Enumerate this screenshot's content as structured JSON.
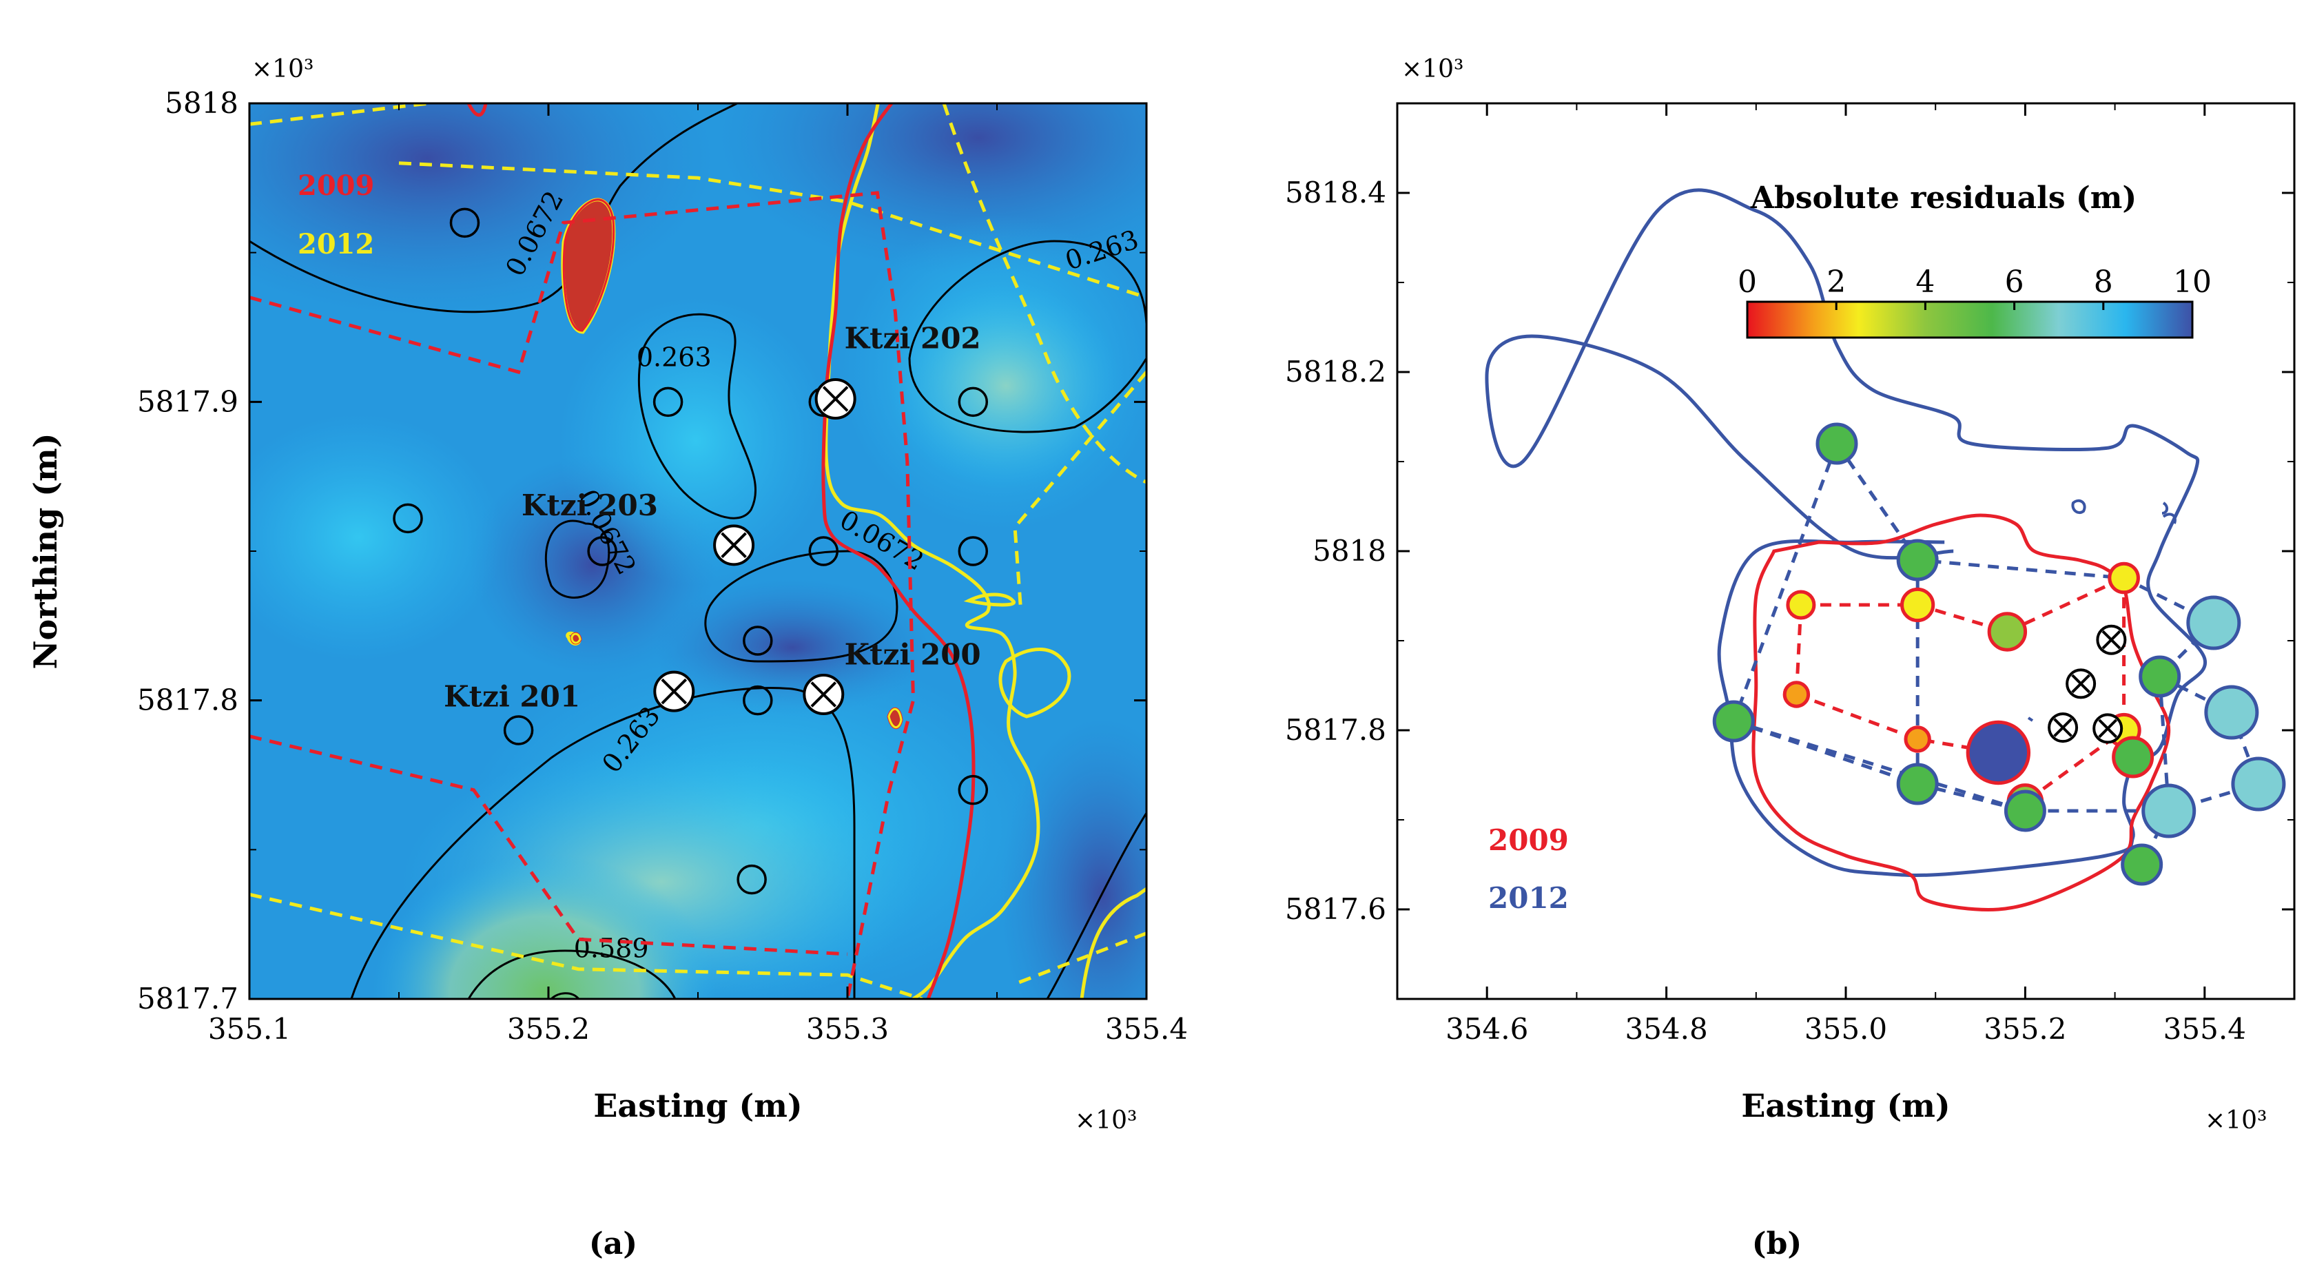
{
  "chart_data": [
    {
      "type": "heatmap",
      "subcaption": "(a)",
      "xlabel": "Easting (m)",
      "ylabel": "Northing (m)",
      "x_multiplier": "×10³",
      "y_multiplier": "×10³",
      "xlim": [
        355.1,
        355.4
      ],
      "ylim": [
        5817.7,
        5818.0
      ],
      "x_ticks": [
        355.1,
        355.2,
        355.3,
        355.4
      ],
      "y_ticks": [
        5817.7,
        5817.8,
        5817.9,
        5818
      ],
      "x_tick_labels": [
        "355.1",
        "355.2",
        "355.3",
        "355.4"
      ],
      "y_tick_labels": [
        "5817.7",
        "5817.8",
        "5817.9",
        "5818"
      ],
      "legend": [
        {
          "name": "2009",
          "color": "#e8202a"
        },
        {
          "name": "2012",
          "color": "#f2ea1c"
        }
      ],
      "contour_labels": [
        {
          "text": "0.0672",
          "x": 355.198,
          "y": 5817.955,
          "rotate": -62
        },
        {
          "text": "0.263",
          "x": 355.242,
          "y": 5817.912,
          "rotate": 0
        },
        {
          "text": "0.263",
          "x": 355.386,
          "y": 5817.948,
          "rotate": -18
        },
        {
          "text": "0.0672",
          "x": 355.217,
          "y": 5817.855,
          "rotate": 62
        },
        {
          "text": "0.0672",
          "x": 355.31,
          "y": 5817.851,
          "rotate": 30
        },
        {
          "text": "0.263",
          "x": 355.23,
          "y": 5817.785,
          "rotate": -52
        },
        {
          "text": "0.589",
          "x": 355.221,
          "y": 5817.714,
          "rotate": 0
        }
      ],
      "wells": [
        {
          "name": "Ktzi 202",
          "x": 355.296,
          "y": 5817.901
        },
        {
          "name": "Ktzi 203",
          "x": 355.262,
          "y": 5817.852
        },
        {
          "name": "Ktzi 201",
          "x": 355.242,
          "y": 5817.803
        },
        {
          "name": "Ktzi 200",
          "x": 355.292,
          "y": 5817.802
        }
      ],
      "well_labels": [
        {
          "text": "Ktzi 202",
          "x": 355.299,
          "y": 5817.918
        },
        {
          "text": "Ktzi 203",
          "x": 355.191,
          "y": 5817.862
        },
        {
          "text": "Ktzi 201",
          "x": 355.165,
          "y": 5817.798
        },
        {
          "text": "Ktzi 200",
          "x": 355.299,
          "y": 5817.812
        }
      ],
      "stations": [
        {
          "x": 355.172,
          "y": 5817.96
        },
        {
          "x": 355.24,
          "y": 5817.9
        },
        {
          "x": 355.292,
          "y": 5817.9
        },
        {
          "x": 355.342,
          "y": 5817.9
        },
        {
          "x": 355.153,
          "y": 5817.861
        },
        {
          "x": 355.218,
          "y": 5817.85
        },
        {
          "x": 355.292,
          "y": 5817.85
        },
        {
          "x": 355.342,
          "y": 5817.85
        },
        {
          "x": 355.27,
          "y": 5817.82
        },
        {
          "x": 355.27,
          "y": 5817.8
        },
        {
          "x": 355.19,
          "y": 5817.79
        },
        {
          "x": 355.342,
          "y": 5817.77
        },
        {
          "x": 355.268,
          "y": 5817.74
        }
      ],
      "outline_2009": [
        [
          355.317,
          5818.003
        ],
        [
          355.305,
          5817.985
        ],
        [
          355.298,
          5817.96
        ],
        [
          355.296,
          5817.93
        ],
        [
          355.293,
          5817.905
        ],
        [
          355.292,
          5817.87
        ],
        [
          355.295,
          5817.855
        ],
        [
          355.31,
          5817.845
        ],
        [
          355.322,
          5817.83
        ],
        [
          355.335,
          5817.815
        ],
        [
          355.341,
          5817.795
        ],
        [
          355.342,
          5817.77
        ],
        [
          355.339,
          5817.745
        ],
        [
          355.334,
          5817.72
        ],
        [
          355.327,
          5817.7
        ]
      ],
      "outline_2012": [
        [
          355.311,
          5818.004
        ],
        [
          355.307,
          5817.985
        ],
        [
          355.302,
          5817.97
        ],
        [
          355.297,
          5817.95
        ],
        [
          355.295,
          5817.93
        ],
        [
          355.294,
          5817.915
        ],
        [
          355.293,
          5817.88
        ],
        [
          355.298,
          5817.866
        ],
        [
          355.311,
          5817.862
        ],
        [
          355.322,
          5817.852
        ],
        [
          355.335,
          5817.845
        ],
        [
          355.345,
          5817.837
        ],
        [
          355.347,
          5817.83
        ],
        [
          355.34,
          5817.825
        ],
        [
          355.352,
          5817.822
        ],
        [
          355.356,
          5817.81
        ],
        [
          355.354,
          5817.79
        ],
        [
          355.362,
          5817.772
        ],
        [
          355.363,
          5817.75
        ],
        [
          355.352,
          5817.73
        ],
        [
          355.339,
          5817.72
        ],
        [
          355.328,
          5817.705
        ],
        [
          355.322,
          5817.7
        ]
      ],
      "hull_2009": [
        [
          355.1,
          5817.935
        ],
        [
          355.19,
          5817.91
        ],
        [
          355.205,
          5817.96
        ],
        [
          355.31,
          5817.97
        ],
        [
          355.316,
          5817.93
        ],
        [
          355.32,
          5817.88
        ],
        [
          355.322,
          5817.8
        ],
        [
          355.314,
          5817.77
        ],
        [
          355.3,
          5817.7
        ]
      ],
      "hull_2009_lower": [
        [
          355.1,
          5817.788
        ],
        [
          355.175,
          5817.77
        ],
        [
          355.21,
          5817.72
        ],
        [
          355.3,
          5817.715
        ]
      ],
      "hull_2012": [
        [
          355.1,
          5817.993
        ],
        [
          355.16,
          5818.0
        ]
      ],
      "hull_2012_b": [
        [
          355.15,
          5817.98
        ],
        [
          355.25,
          5817.975
        ],
        [
          355.3,
          5817.967
        ],
        [
          355.4,
          5817.935
        ]
      ],
      "hull_2012_c": [
        [
          355.4,
          5817.91
        ],
        [
          355.356,
          5817.858
        ],
        [
          355.358,
          5817.83
        ]
      ],
      "hull_2012_d": [
        [
          355.1,
          5817.735
        ],
        [
          355.21,
          5817.71
        ],
        [
          355.3,
          5817.708
        ],
        [
          355.325,
          5817.7
        ]
      ],
      "hull_2012_e": [
        [
          355.4,
          5817.722
        ],
        [
          355.356,
          5817.705
        ]
      ]
    },
    {
      "type": "scatter",
      "subcaption": "(b)",
      "title": "Absolute residuals (m)",
      "xlabel": "Easting (m)",
      "ylabel": "",
      "x_multiplier": "×10³",
      "y_multiplier": "×10³",
      "xlim": [
        354.5,
        355.5
      ],
      "ylim": [
        5817.5,
        5818.5
      ],
      "x_ticks": [
        354.6,
        354.8,
        355.0,
        355.2,
        355.4
      ],
      "y_ticks": [
        5817.6,
        5817.8,
        5818,
        5818.2,
        5818.4
      ],
      "x_tick_labels": [
        "354.6",
        "354.8",
        "355.0",
        "355.2",
        "355.4"
      ],
      "y_tick_labels": [
        "5817.6",
        "5817.8",
        "5818",
        "5818.2",
        "5818.4"
      ],
      "colorbar": {
        "ticks": [
          0,
          2,
          4,
          6,
          8,
          10
        ],
        "tick_labels": [
          "0",
          "2",
          "4",
          "6",
          "8",
          "10"
        ],
        "range": [
          0,
          10
        ],
        "colors": [
          "#e8141e",
          "#f5a01a",
          "#f5ec1e",
          "#8ec63f",
          "#4db84a",
          "#7ecfd4",
          "#2ab6ee",
          "#3e50a6"
        ]
      },
      "legend": [
        {
          "name": "2009",
          "color": "#e8202a"
        },
        {
          "name": "2012",
          "color": "#3a55a4"
        }
      ],
      "wells": [
        {
          "x": 355.296,
          "y": 5817.901
        },
        {
          "x": 355.262,
          "y": 5817.852
        },
        {
          "x": 355.242,
          "y": 5817.803
        },
        {
          "x": 355.292,
          "y": 5817.802
        }
      ],
      "series": [
        {
          "name": "2009",
          "points": [
            {
              "x": 354.95,
              "y": 5817.94,
              "residual": 2.5
            },
            {
              "x": 355.08,
              "y": 5817.94,
              "residual": 3.5
            },
            {
              "x": 355.18,
              "y": 5817.91,
              "residual": 4.5
            },
            {
              "x": 355.31,
              "y": 5817.97,
              "residual": 3.0
            },
            {
              "x": 354.945,
              "y": 5817.84,
              "residual": 2.0
            },
            {
              "x": 355.08,
              "y": 5817.79,
              "residual": 2.0
            },
            {
              "x": 355.17,
              "y": 5817.775,
              "residual": 9.5
            },
            {
              "x": 355.2,
              "y": 5817.72,
              "residual": 4.0
            },
            {
              "x": 355.31,
              "y": 5817.8,
              "residual": 3.5
            },
            {
              "x": 355.32,
              "y": 5817.77,
              "residual": 5.0
            }
          ]
        },
        {
          "name": "2012",
          "points": [
            {
              "x": 354.99,
              "y": 5818.12,
              "residual": 5.0
            },
            {
              "x": 355.08,
              "y": 5817.99,
              "residual": 5.0
            },
            {
              "x": 355.41,
              "y": 5817.92,
              "residual": 7.5
            },
            {
              "x": 355.35,
              "y": 5817.86,
              "residual": 5.0
            },
            {
              "x": 355.43,
              "y": 5817.82,
              "residual": 7.5
            },
            {
              "x": 355.46,
              "y": 5817.74,
              "residual": 7.5
            },
            {
              "x": 355.36,
              "y": 5817.71,
              "residual": 7.5
            },
            {
              "x": 355.33,
              "y": 5817.65,
              "residual": 5.0
            },
            {
              "x": 355.2,
              "y": 5817.71,
              "residual": 5.0
            },
            {
              "x": 355.08,
              "y": 5817.74,
              "residual": 5.0
            },
            {
              "x": 354.875,
              "y": 5817.81,
              "residual": 5.0
            }
          ]
        }
      ],
      "outline_2012": [
        [
          355.12,
          5818.0
        ],
        [
          355.01,
          5818.0
        ],
        [
          354.89,
          5818.1
        ],
        [
          354.79,
          5818.2
        ],
        [
          354.65,
          5818.24
        ],
        [
          354.6,
          5818.2
        ],
        [
          354.64,
          5818.1
        ],
        [
          354.79,
          5818.38
        ],
        [
          354.9,
          5818.38
        ],
        [
          354.96,
          5818.32
        ],
        [
          354.99,
          5818.23
        ],
        [
          355.03,
          5818.18
        ],
        [
          355.12,
          5818.15
        ],
        [
          355.14,
          5818.12
        ],
        [
          355.29,
          5818.115
        ],
        [
          355.32,
          5818.14
        ],
        [
          355.38,
          5818.11
        ],
        [
          355.39,
          5818.09
        ],
        [
          355.35,
          5818.0
        ],
        [
          355.34,
          5817.95
        ],
        [
          355.4,
          5817.88
        ],
        [
          355.37,
          5817.84
        ],
        [
          355.35,
          5817.78
        ],
        [
          355.32,
          5817.76
        ],
        [
          355.31,
          5817.72
        ],
        [
          355.32,
          5817.68
        ],
        [
          355.29,
          5817.66
        ],
        [
          355.12,
          5817.64
        ],
        [
          355.04,
          5817.64
        ],
        [
          354.98,
          5817.65
        ],
        [
          354.92,
          5817.69
        ],
        [
          354.88,
          5817.75
        ],
        [
          354.87,
          5817.82
        ],
        [
          354.86,
          5817.9
        ],
        [
          354.9,
          5818.0
        ],
        [
          355.01,
          5818.01
        ],
        [
          355.11,
          5818.01
        ]
      ],
      "outline_2009": [
        [
          354.97,
          5818.01
        ],
        [
          355.04,
          5818.01
        ],
        [
          355.1,
          5818.03
        ],
        [
          355.15,
          5818.04
        ],
        [
          355.19,
          5818.03
        ],
        [
          355.21,
          5818.0
        ],
        [
          355.26,
          5817.99
        ],
        [
          355.29,
          5817.98
        ],
        [
          355.31,
          5817.96
        ],
        [
          355.32,
          5817.9
        ],
        [
          355.34,
          5817.85
        ],
        [
          355.36,
          5817.8
        ],
        [
          355.34,
          5817.74
        ],
        [
          355.32,
          5817.7
        ],
        [
          355.31,
          5817.66
        ],
        [
          355.24,
          5817.62
        ],
        [
          355.17,
          5817.6
        ],
        [
          355.09,
          5817.61
        ],
        [
          355.07,
          5817.64
        ],
        [
          355.0,
          5817.66
        ],
        [
          354.94,
          5817.69
        ],
        [
          354.9,
          5817.75
        ],
        [
          354.9,
          5817.85
        ],
        [
          354.9,
          5817.95
        ],
        [
          354.92,
          5818.0
        ]
      ],
      "network_2009": [
        [
          [
            354.95,
            5817.94
          ],
          [
            355.08,
            5817.94
          ],
          [
            355.18,
            5817.91
          ]
        ],
        [
          [
            355.18,
            5817.91
          ],
          [
            355.31,
            5817.97
          ]
        ],
        [
          [
            354.945,
            5817.84
          ],
          [
            355.08,
            5817.79
          ],
          [
            355.17,
            5817.775
          ],
          [
            355.2,
            5817.72
          ],
          [
            355.31,
            5817.8
          ],
          [
            355.32,
            5817.77
          ]
        ],
        [
          [
            354.95,
            5817.94
          ],
          [
            354.945,
            5817.84
          ]
        ],
        [
          [
            355.31,
            5817.97
          ],
          [
            355.31,
            5817.8
          ]
        ]
      ],
      "network_2012": [
        [
          [
            354.99,
            5818.12
          ],
          [
            355.08,
            5817.99
          ],
          [
            355.31,
            5817.97
          ],
          [
            355.41,
            5817.92
          ]
        ],
        [
          [
            354.99,
            5818.12
          ],
          [
            354.875,
            5817.81
          ]
        ],
        [
          [
            354.99,
            5818.12
          ],
          [
            355.08,
            5817.99
          ]
        ],
        [
          [
            355.08,
            5817.99
          ],
          [
            355.08,
            5817.74
          ]
        ],
        [
          [
            354.875,
            5817.81
          ],
          [
            355.08,
            5817.74
          ],
          [
            355.2,
            5817.71
          ],
          [
            355.36,
            5817.71
          ],
          [
            355.46,
            5817.74
          ]
        ],
        [
          [
            355.41,
            5817.92
          ],
          [
            355.35,
            5817.86
          ],
          [
            355.43,
            5817.82
          ],
          [
            355.46,
            5817.74
          ]
        ],
        [
          [
            355.35,
            5817.86
          ],
          [
            355.36,
            5817.71
          ],
          [
            355.33,
            5817.65
          ]
        ],
        [
          [
            354.875,
            5817.81
          ],
          [
            355.2,
            5817.71
          ]
        ]
      ]
    }
  ]
}
